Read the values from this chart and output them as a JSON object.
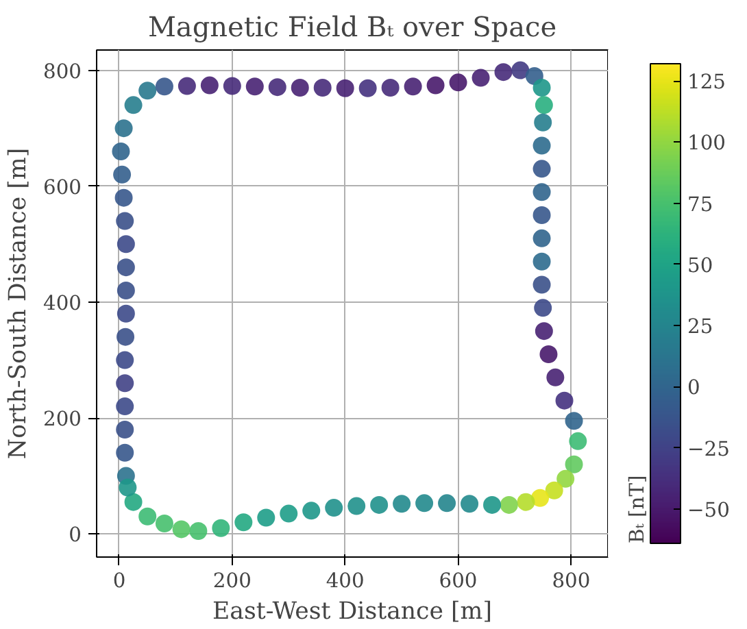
{
  "chart_data": {
    "type": "scatter",
    "title": "Magnetic Field Bₜ over Space",
    "xlabel": "East-West Distance [m]",
    "ylabel": "North-South Distance [m]",
    "clabel": "Bₜ [nT]",
    "xlim": [
      -40,
      865
    ],
    "ylim": [
      -40,
      835
    ],
    "xticks": [
      0,
      200,
      400,
      600,
      800
    ],
    "yticks": [
      0,
      200,
      400,
      600,
      800
    ],
    "clim": [
      -64,
      132
    ],
    "cticks": [
      -50,
      -25,
      0,
      25,
      50,
      75,
      100,
      125
    ],
    "grid": true,
    "marker": "circle",
    "x": [
      12,
      10,
      10,
      10,
      10,
      10,
      11,
      12,
      12,
      12,
      12,
      10,
      8,
      5,
      3,
      8,
      25,
      50,
      80,
      120,
      160,
      200,
      240,
      280,
      320,
      360,
      400,
      440,
      480,
      520,
      560,
      600,
      640,
      680,
      710,
      735,
      748,
      752,
      750,
      748,
      748,
      748,
      748,
      748,
      748,
      748,
      750,
      752,
      760,
      772,
      788,
      805,
      812,
      805,
      790,
      770,
      745,
      720,
      690,
      660,
      620,
      580,
      540,
      500,
      460,
      420,
      380,
      340,
      300,
      260,
      220,
      180,
      140,
      110,
      80,
      50,
      25,
      15
    ],
    "values": [
      100,
      140,
      180,
      220,
      260,
      300,
      340,
      380,
      420,
      460,
      500,
      540,
      580,
      620,
      660,
      700,
      740,
      765,
      772,
      773,
      774,
      773,
      772,
      771,
      770,
      770,
      769,
      769,
      770,
      772,
      774,
      779,
      787,
      797,
      800,
      790,
      770,
      740,
      710,
      670,
      630,
      590,
      550,
      510,
      470,
      430,
      390,
      350,
      310,
      270,
      230,
      195,
      160,
      120,
      95,
      75,
      62,
      55,
      50,
      50,
      52,
      53,
      53,
      52,
      50,
      48,
      45,
      40,
      35,
      28,
      20,
      10,
      5,
      8,
      18,
      30,
      55,
      80
    ],
    "cvalues": [
      10,
      -10,
      -15,
      -20,
      -25,
      -20,
      -15,
      -20,
      -15,
      -15,
      -20,
      -15,
      -10,
      -5,
      0,
      10,
      20,
      15,
      -10,
      -40,
      -45,
      -40,
      -45,
      -40,
      -45,
      -40,
      -45,
      -35,
      -40,
      -45,
      -50,
      -50,
      -45,
      -40,
      -30,
      -5,
      40,
      60,
      20,
      5,
      -10,
      0,
      -10,
      0,
      5,
      -15,
      -20,
      -45,
      -50,
      -45,
      -35,
      0,
      70,
      85,
      100,
      115,
      125,
      110,
      95,
      40,
      30,
      25,
      30,
      30,
      35,
      35,
      35,
      40,
      45,
      45,
      55,
      65,
      75,
      80,
      75,
      70,
      55,
      40
    ]
  }
}
